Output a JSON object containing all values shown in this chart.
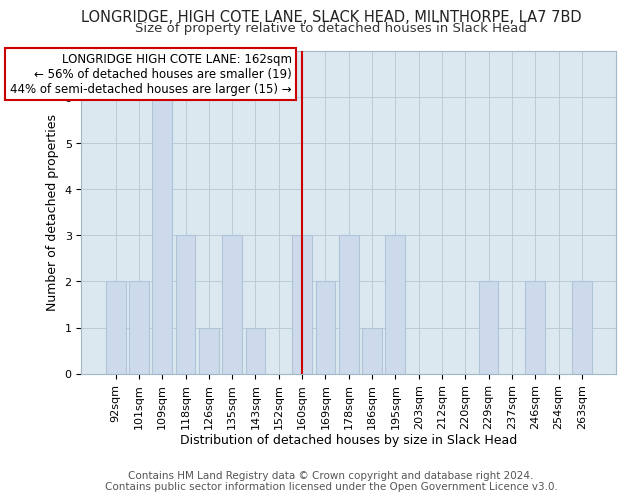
{
  "title": "LONGRIDGE, HIGH COTE LANE, SLACK HEAD, MILNTHORPE, LA7 7BD",
  "subtitle": "Size of property relative to detached houses in Slack Head",
  "xlabel": "Distribution of detached houses by size in Slack Head",
  "ylabel": "Number of detached properties",
  "bar_labels": [
    "92sqm",
    "101sqm",
    "109sqm",
    "118sqm",
    "126sqm",
    "135sqm",
    "143sqm",
    "152sqm",
    "160sqm",
    "169sqm",
    "178sqm",
    "186sqm",
    "195sqm",
    "203sqm",
    "212sqm",
    "220sqm",
    "229sqm",
    "237sqm",
    "246sqm",
    "254sqm",
    "263sqm"
  ],
  "bar_values": [
    2,
    2,
    6,
    3,
    1,
    3,
    1,
    0,
    3,
    2,
    3,
    1,
    3,
    0,
    0,
    0,
    2,
    0,
    2,
    0,
    2
  ],
  "bar_color": "#cddaeb",
  "bar_edge_color": "#b0c4d8",
  "highlight_x_label": "160sqm",
  "highlight_line_color": "#cc0000",
  "annotation_text": "LONGRIDGE HIGH COTE LANE: 162sqm\n← 56% of detached houses are smaller (19)\n44% of semi-detached houses are larger (15) →",
  "annotation_box_edge_color": "#cc0000",
  "annotation_box_face_color": "#ffffff",
  "ylim": [
    0,
    7
  ],
  "yticks": [
    0,
    1,
    2,
    3,
    4,
    5,
    6,
    7
  ],
  "footer_line1": "Contains HM Land Registry data © Crown copyright and database right 2024.",
  "footer_line2": "Contains public sector information licensed under the Open Government Licence v3.0.",
  "background_color": "#ffffff",
  "plot_background_color": "#dce8f0",
  "title_fontsize": 10.5,
  "subtitle_fontsize": 9.5,
  "axis_label_fontsize": 9,
  "tick_fontsize": 8,
  "footer_fontsize": 7.5,
  "annotation_fontsize": 8.5
}
